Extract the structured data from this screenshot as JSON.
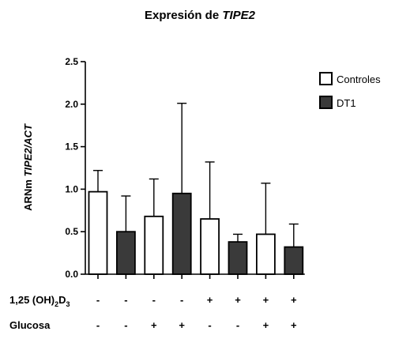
{
  "chart_data": {
    "type": "bar",
    "title_prefix": "Expresión de",
    "title_gene": "TIPE2",
    "ylabel_prefix": "ARNm",
    "ylabel_gene": "TIPE2/ACT",
    "ylim": [
      0,
      2.5
    ],
    "yticks": [
      "0.0",
      "0.5",
      "1.0",
      "1.5",
      "2.0",
      "2.5"
    ],
    "grid": false,
    "legend_position": "top-right",
    "series": [
      {
        "name": "Controles",
        "color": "#ffffff"
      },
      {
        "name": "DT1",
        "color": "#3a3a3a"
      }
    ],
    "bars": [
      {
        "series": 0,
        "value": 0.97,
        "error": 0.25
      },
      {
        "series": 1,
        "value": 0.5,
        "error": 0.42
      },
      {
        "series": 0,
        "value": 0.68,
        "error": 0.44
      },
      {
        "series": 1,
        "value": 0.95,
        "error": 1.06
      },
      {
        "series": 0,
        "value": 0.65,
        "error": 0.67
      },
      {
        "series": 1,
        "value": 0.38,
        "error": 0.09
      },
      {
        "series": 0,
        "value": 0.47,
        "error": 0.6
      },
      {
        "series": 1,
        "value": 0.32,
        "error": 0.27
      }
    ],
    "conditions": [
      {
        "label_main": "1,25 (OH)",
        "sub1": "2",
        "mid": "D",
        "sub2": "3",
        "signs": [
          "-",
          "-",
          "-",
          "-",
          "+",
          "+",
          "+",
          "+"
        ]
      },
      {
        "label_main": "Glucosa",
        "sub1": "",
        "mid": "",
        "sub2": "",
        "signs": [
          "-",
          "-",
          "+",
          "+",
          "-",
          "-",
          "+",
          "+"
        ]
      }
    ]
  }
}
